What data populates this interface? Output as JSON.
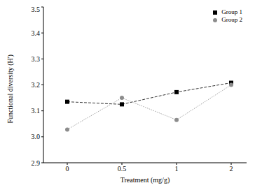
{
  "chart_data": {
    "type": "line",
    "x_label": "Treatment (mg/g)",
    "y_label": "Functional diversity (H')",
    "categories": [
      "0",
      "0.5",
      "1",
      "2"
    ],
    "series": [
      {
        "name": "Group 1",
        "color": "#000000",
        "marker": "square",
        "line_style": "dashed",
        "values": [
          3.135,
          3.125,
          3.172,
          3.208
        ]
      },
      {
        "name": "Group 2",
        "color": "#8c8c8c",
        "marker": "circle",
        "line_style": "dotted",
        "values": [
          3.028,
          3.15,
          3.065,
          3.2
        ]
      }
    ],
    "ylim": [
      2.9,
      3.5
    ],
    "yticks": [
      2.9,
      {
        "value": 3,
        "label": "3.0"
      },
      3.1,
      3.2,
      3.3,
      3.4,
      3.5
    ],
    "grid": false,
    "legend": "top right"
  }
}
